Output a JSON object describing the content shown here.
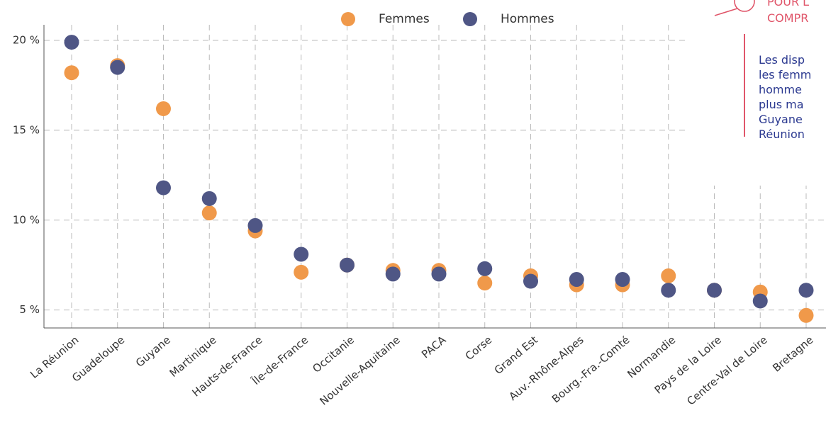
{
  "chart_data": {
    "type": "scatter",
    "categories": [
      "La Réunion",
      "Guadeloupe",
      "Guyane",
      "Martinique",
      "Hauts-de-France",
      "Île-de-France",
      "Occitanie",
      "Nouvelle-Aquitaine",
      "PACA",
      "Corse",
      "Grand Est",
      "Auv.-Rhône-Alpes",
      "Bourg.-Fra.-Comté",
      "Normandie",
      "Pays de la Loire",
      "Centre-Val de Loire",
      "Bretagne"
    ],
    "series": [
      {
        "name": "Femmes",
        "color": "#f0994a",
        "values": [
          18.2,
          18.6,
          16.2,
          10.4,
          9.4,
          7.1,
          7.5,
          7.2,
          7.2,
          6.5,
          6.9,
          6.4,
          6.4,
          6.9,
          6.1,
          6.0,
          4.7
        ]
      },
      {
        "name": "Hommes",
        "color": "#4f5685",
        "values": [
          19.9,
          18.5,
          11.8,
          11.2,
          9.7,
          8.1,
          7.5,
          7.0,
          7.0,
          7.3,
          6.6,
          6.7,
          6.7,
          6.1,
          6.1,
          5.5,
          6.1
        ]
      }
    ],
    "ylim": [
      4,
      21.5
    ],
    "yticks": [
      {
        "value": 5,
        "label": "5 %"
      },
      {
        "value": 10,
        "label": "10 %"
      },
      {
        "value": 15,
        "label": "15 %"
      },
      {
        "value": 20,
        "label": "20 %"
      }
    ],
    "grid": true
  },
  "sidebar": {
    "heading": [
      "POUR L",
      "COMPR"
    ],
    "lines": [
      "Les disp",
      "les femm",
      "homme",
      "plus ma",
      "Guyane",
      "Réunion"
    ]
  }
}
